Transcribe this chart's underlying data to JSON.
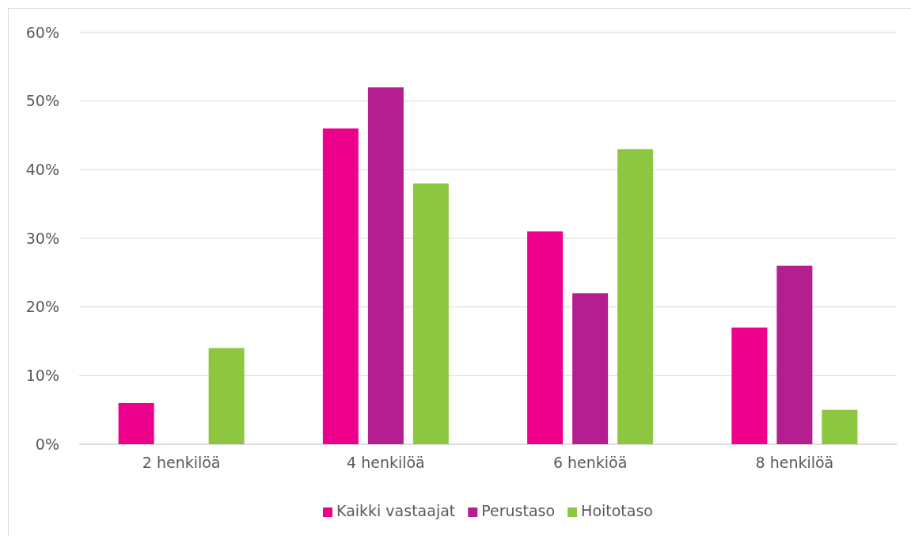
{
  "chart_data": {
    "type": "bar",
    "categories": [
      "2 henkilöä",
      "4 henkilöä",
      "6 henkiöä",
      "8 henkilöä"
    ],
    "series": [
      {
        "name": "Kaikki vastaajat",
        "color": "#ec008c",
        "values": [
          6,
          46,
          31,
          17
        ]
      },
      {
        "name": "Perustaso",
        "color": "#b41e8e",
        "values": [
          0,
          52,
          22,
          26
        ]
      },
      {
        "name": "Hoitotaso",
        "color": "#8dc63f",
        "values": [
          14,
          38,
          43,
          5
        ]
      }
    ],
    "ylim": [
      0,
      60
    ],
    "yticks": [
      {
        "value": 0,
        "label": "0%"
      },
      {
        "value": 10,
        "label": "10%"
      },
      {
        "value": 20,
        "label": "20%"
      },
      {
        "value": 30,
        "label": "30%"
      },
      {
        "value": 40,
        "label": "40%"
      },
      {
        "value": 50,
        "label": "50%"
      },
      {
        "value": 60,
        "label": "60%"
      }
    ],
    "grid": "y",
    "legend": "bottom"
  }
}
